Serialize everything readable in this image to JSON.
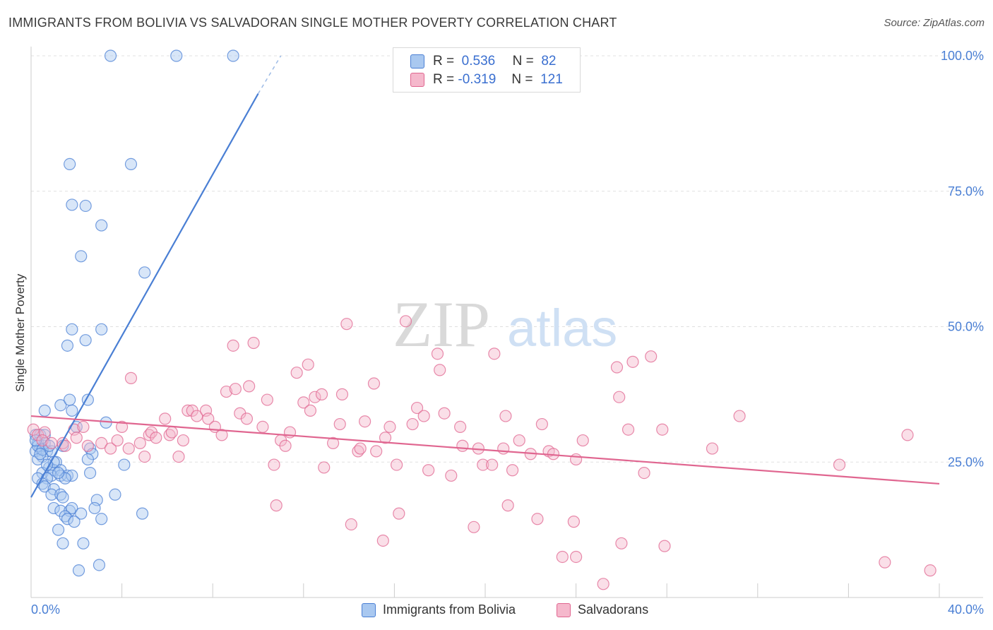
{
  "header": {
    "title": "IMMIGRANTS FROM BOLIVIA VS SALVADORAN SINGLE MOTHER POVERTY CORRELATION CHART",
    "source": "Source: ZipAtlas.com"
  },
  "watermark": {
    "zip": "ZIP",
    "atlas": "atlas"
  },
  "colors": {
    "blue": "#4a7fd4",
    "blue_fill": "#a9c8f0",
    "pink": "#e06690",
    "pink_fill": "#f5b8cc",
    "grid": "#e0e0e0"
  },
  "legend": {
    "r_label": "R =",
    "n_label": "N =",
    "series1": {
      "r": "0.536",
      "n": "82"
    },
    "series2": {
      "r": "-0.319",
      "n": "121"
    }
  },
  "chart_data": {
    "type": "scatter",
    "xlabel": "",
    "ylabel": "Single Mother Poverty",
    "xlim": [
      0,
      40
    ],
    "ylim": [
      0,
      100
    ],
    "x_tick_labels": {
      "left": "0.0%",
      "right": "40.0%"
    },
    "y_ticks": [
      {
        "value": 25,
        "label": "25.0%"
      },
      {
        "value": 50,
        "label": "50.0%"
      },
      {
        "value": 75,
        "label": "75.0%"
      },
      {
        "value": 100,
        "label": "100.0%"
      }
    ],
    "series": [
      {
        "name": "Immigrants from Bolivia",
        "color": "#4a7fd4",
        "trend": {
          "x0": 0.0,
          "y0": 18.5,
          "x1": 10.0,
          "y1": 93.0,
          "dash_to_x": 11.0,
          "dash_to_y": 100.0
        },
        "points": [
          [
            3.5,
            100
          ],
          [
            6.4,
            100
          ],
          [
            8.9,
            100
          ],
          [
            1.7,
            80
          ],
          [
            4.4,
            80
          ],
          [
            1.8,
            72.5
          ],
          [
            2.4,
            72.3
          ],
          [
            3.1,
            68.7
          ],
          [
            2.2,
            63
          ],
          [
            5.0,
            60
          ],
          [
            1.8,
            49.5
          ],
          [
            3.1,
            49.5
          ],
          [
            1.6,
            46.5
          ],
          [
            2.4,
            47.5
          ],
          [
            0.6,
            34.5
          ],
          [
            1.3,
            35.5
          ],
          [
            1.7,
            36.5
          ],
          [
            1.8,
            34.5
          ],
          [
            2.5,
            36.5
          ],
          [
            3.3,
            32.3
          ],
          [
            2.0,
            31.5
          ],
          [
            0.2,
            30
          ],
          [
            0.4,
            30
          ],
          [
            0.6,
            30
          ],
          [
            0.3,
            28.5
          ],
          [
            0.4,
            27.5
          ],
          [
            0.7,
            27
          ],
          [
            0.2,
            27
          ],
          [
            0.5,
            26
          ],
          [
            0.9,
            27
          ],
          [
            1.4,
            28
          ],
          [
            2.6,
            27.5
          ],
          [
            2.7,
            26.5
          ],
          [
            0.3,
            25.5
          ],
          [
            1.1,
            25
          ],
          [
            2.5,
            25.5
          ],
          [
            0.8,
            24
          ],
          [
            1.0,
            23.5
          ],
          [
            1.3,
            23.5
          ],
          [
            0.5,
            23
          ],
          [
            0.9,
            22.5
          ],
          [
            1.3,
            22.5
          ],
          [
            1.6,
            22.5
          ],
          [
            1.8,
            22.5
          ],
          [
            0.3,
            22
          ],
          [
            0.7,
            22
          ],
          [
            1.5,
            22
          ],
          [
            0.5,
            21
          ],
          [
            0.6,
            20.5
          ],
          [
            1.0,
            20
          ],
          [
            2.6,
            23
          ],
          [
            4.1,
            24.5
          ],
          [
            0.9,
            19
          ],
          [
            1.3,
            19
          ],
          [
            1.4,
            18.5
          ],
          [
            2.9,
            18
          ],
          [
            3.7,
            19
          ],
          [
            1.0,
            16.5
          ],
          [
            1.3,
            16
          ],
          [
            1.7,
            16
          ],
          [
            1.8,
            16.5
          ],
          [
            2.2,
            15.5
          ],
          [
            2.8,
            16.5
          ],
          [
            4.9,
            15.5
          ],
          [
            1.5,
            15
          ],
          [
            1.6,
            14.5
          ],
          [
            1.9,
            14
          ],
          [
            3.1,
            14.5
          ],
          [
            1.2,
            12.5
          ],
          [
            1.4,
            10
          ],
          [
            2.3,
            10
          ],
          [
            2.1,
            5
          ],
          [
            3.0,
            6
          ],
          [
            0.3,
            28
          ],
          [
            0.6,
            28.5
          ],
          [
            0.2,
            29
          ],
          [
            0.5,
            27.3
          ],
          [
            0.8,
            28
          ],
          [
            0.4,
            26.5
          ],
          [
            1.2,
            23
          ],
          [
            1.0,
            25
          ],
          [
            0.7,
            24.5
          ]
        ]
      },
      {
        "name": "Salvadorans",
        "color": "#e06690",
        "trend": {
          "x0": 0.0,
          "y0": 33.5,
          "x1": 40.0,
          "y1": 21.0
        },
        "points": [
          [
            0.1,
            31
          ],
          [
            0.3,
            30
          ],
          [
            0.6,
            30.5
          ],
          [
            0.5,
            29
          ],
          [
            0.9,
            28.5
          ],
          [
            1.4,
            28.5
          ],
          [
            1.5,
            28
          ],
          [
            1.9,
            31
          ],
          [
            2.0,
            29.5
          ],
          [
            2.3,
            31.5
          ],
          [
            2.5,
            28
          ],
          [
            3.1,
            28.5
          ],
          [
            3.5,
            27.5
          ],
          [
            3.8,
            29
          ],
          [
            4.0,
            31.5
          ],
          [
            4.3,
            27.5
          ],
          [
            4.4,
            40.5
          ],
          [
            4.8,
            28.5
          ],
          [
            5.0,
            26
          ],
          [
            5.2,
            30
          ],
          [
            5.3,
            30.5
          ],
          [
            5.5,
            29.5
          ],
          [
            5.9,
            33
          ],
          [
            6.1,
            30
          ],
          [
            6.2,
            30.5
          ],
          [
            6.5,
            26
          ],
          [
            6.7,
            29
          ],
          [
            6.9,
            34.5
          ],
          [
            7.1,
            34.5
          ],
          [
            7.3,
            33.5
          ],
          [
            7.7,
            34.5
          ],
          [
            7.8,
            33
          ],
          [
            8.1,
            31.5
          ],
          [
            8.4,
            30
          ],
          [
            8.6,
            38
          ],
          [
            8.9,
            46.5
          ],
          [
            9.0,
            38.5
          ],
          [
            9.2,
            34
          ],
          [
            9.5,
            33
          ],
          [
            9.6,
            39
          ],
          [
            9.8,
            47
          ],
          [
            10.2,
            31.5
          ],
          [
            10.4,
            36.5
          ],
          [
            10.7,
            24.5
          ],
          [
            10.8,
            17
          ],
          [
            11.0,
            29
          ],
          [
            11.2,
            28
          ],
          [
            11.4,
            30.5
          ],
          [
            11.7,
            41.5
          ],
          [
            12.0,
            36
          ],
          [
            12.2,
            43
          ],
          [
            12.3,
            34.5
          ],
          [
            12.5,
            37
          ],
          [
            12.8,
            37.5
          ],
          [
            12.9,
            24
          ],
          [
            13.3,
            28.5
          ],
          [
            13.6,
            32
          ],
          [
            13.7,
            37.5
          ],
          [
            13.9,
            50.5
          ],
          [
            14.1,
            13.5
          ],
          [
            14.4,
            27
          ],
          [
            14.5,
            27.5
          ],
          [
            14.7,
            32.5
          ],
          [
            15.1,
            39.5
          ],
          [
            15.2,
            27
          ],
          [
            15.5,
            10.5
          ],
          [
            15.6,
            29.5
          ],
          [
            15.8,
            31.5
          ],
          [
            16.1,
            24.5
          ],
          [
            16.2,
            15.5
          ],
          [
            16.5,
            51
          ],
          [
            16.8,
            32
          ],
          [
            17.0,
            35
          ],
          [
            17.3,
            33.5
          ],
          [
            17.5,
            23.5
          ],
          [
            17.9,
            45
          ],
          [
            18.0,
            42
          ],
          [
            18.2,
            34
          ],
          [
            18.5,
            22.5
          ],
          [
            18.9,
            31.5
          ],
          [
            19.0,
            28
          ],
          [
            19.5,
            13
          ],
          [
            19.7,
            27.5
          ],
          [
            19.9,
            24.5
          ],
          [
            20.3,
            24.5
          ],
          [
            20.4,
            45
          ],
          [
            20.8,
            27.5
          ],
          [
            20.9,
            33.5
          ],
          [
            21.0,
            17
          ],
          [
            21.2,
            23.5
          ],
          [
            21.5,
            29
          ],
          [
            22.0,
            26.5
          ],
          [
            22.3,
            14.5
          ],
          [
            22.5,
            32
          ],
          [
            22.8,
            27
          ],
          [
            23.0,
            26.5
          ],
          [
            23.4,
            7.5
          ],
          [
            23.9,
            14
          ],
          [
            24.0,
            25.5
          ],
          [
            24.0,
            7.5
          ],
          [
            24.3,
            29
          ],
          [
            25.2,
            2.5
          ],
          [
            25.8,
            42.5
          ],
          [
            25.9,
            37
          ],
          [
            26.0,
            10
          ],
          [
            26.3,
            31
          ],
          [
            26.5,
            43.5
          ],
          [
            27.0,
            23
          ],
          [
            27.3,
            44.5
          ],
          [
            27.8,
            31
          ],
          [
            27.9,
            9.5
          ],
          [
            30.0,
            27.5
          ],
          [
            31.2,
            33.5
          ],
          [
            35.6,
            24.5
          ],
          [
            37.6,
            6.5
          ],
          [
            38.6,
            30
          ],
          [
            39.6,
            5
          ]
        ]
      }
    ]
  },
  "bottom_legend": {
    "item1": "Immigrants from Bolivia",
    "item2": "Salvadorans"
  }
}
